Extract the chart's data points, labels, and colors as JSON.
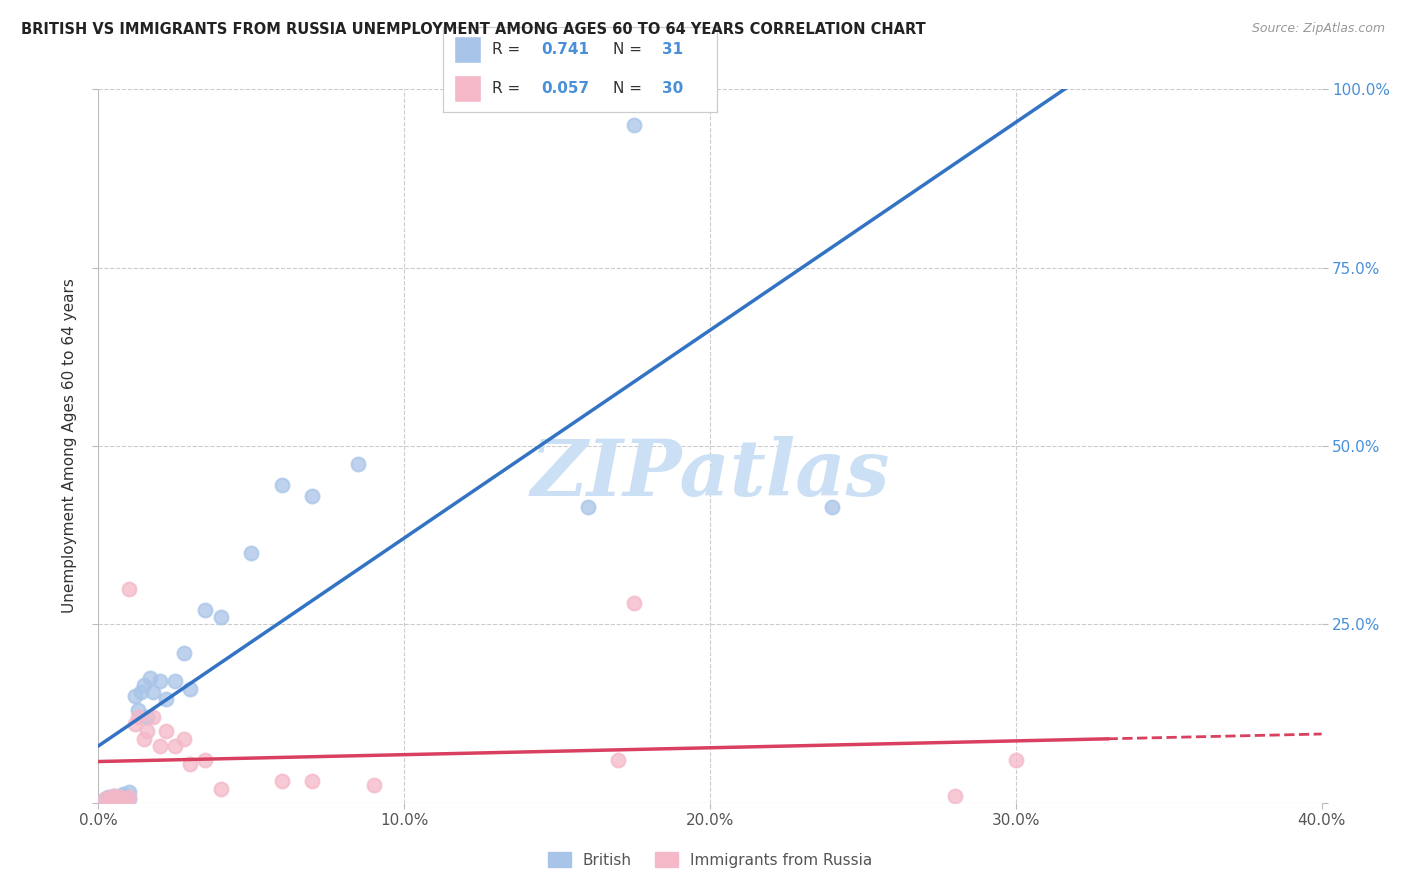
{
  "title": "BRITISH VS IMMIGRANTS FROM RUSSIA UNEMPLOYMENT AMONG AGES 60 TO 64 YEARS CORRELATION CHART",
  "source": "Source: ZipAtlas.com",
  "ylabel": "Unemployment Among Ages 60 to 64 years",
  "xlim": [
    0,
    0.4
  ],
  "ylim": [
    0,
    1.0
  ],
  "xticks": [
    0.0,
    0.1,
    0.2,
    0.3,
    0.4
  ],
  "yticks": [
    0.0,
    0.25,
    0.5,
    0.75,
    1.0
  ],
  "ytick_labels": [
    "",
    "25.0%",
    "50.0%",
    "75.0%",
    "100.0%"
  ],
  "british_R": 0.741,
  "british_N": 31,
  "russia_R": 0.057,
  "russia_N": 30,
  "british_color": "#a8c4e8",
  "russia_color": "#f4b8c8",
  "british_line_color": "#3373c4",
  "russia_line_color": "#d94060",
  "background_color": "#ffffff",
  "grid_color": "#cccccc",
  "british_x": [
    0.002,
    0.003,
    0.004,
    0.005,
    0.006,
    0.007,
    0.008,
    0.009,
    0.01,
    0.01,
    0.012,
    0.013,
    0.014,
    0.015,
    0.016,
    0.017,
    0.018,
    0.02,
    0.022,
    0.025,
    0.028,
    0.03,
    0.035,
    0.04,
    0.05,
    0.06,
    0.07,
    0.085,
    0.16,
    0.24,
    0.175
  ],
  "british_y": [
    0.005,
    0.008,
    0.003,
    0.01,
    0.005,
    0.008,
    0.012,
    0.007,
    0.005,
    0.015,
    0.15,
    0.13,
    0.155,
    0.165,
    0.12,
    0.175,
    0.155,
    0.17,
    0.145,
    0.17,
    0.21,
    0.16,
    0.27,
    0.26,
    0.35,
    0.445,
    0.43,
    0.475,
    0.415,
    0.415,
    0.95
  ],
  "russia_x": [
    0.002,
    0.003,
    0.004,
    0.005,
    0.005,
    0.006,
    0.007,
    0.008,
    0.009,
    0.01,
    0.01,
    0.012,
    0.013,
    0.015,
    0.016,
    0.018,
    0.02,
    0.022,
    0.025,
    0.028,
    0.03,
    0.035,
    0.04,
    0.06,
    0.07,
    0.09,
    0.17,
    0.175,
    0.28,
    0.3
  ],
  "russia_y": [
    0.005,
    0.003,
    0.008,
    0.005,
    0.01,
    0.003,
    0.008,
    0.003,
    0.005,
    0.008,
    0.3,
    0.11,
    0.12,
    0.09,
    0.1,
    0.12,
    0.08,
    0.1,
    0.08,
    0.09,
    0.055,
    0.06,
    0.02,
    0.03,
    0.03,
    0.025,
    0.06,
    0.28,
    0.01,
    0.06
  ],
  "watermark": "ZIPatlas",
  "watermark_color": "#cce0f5",
  "legend_british": "British",
  "legend_russia": "Immigrants from Russia"
}
